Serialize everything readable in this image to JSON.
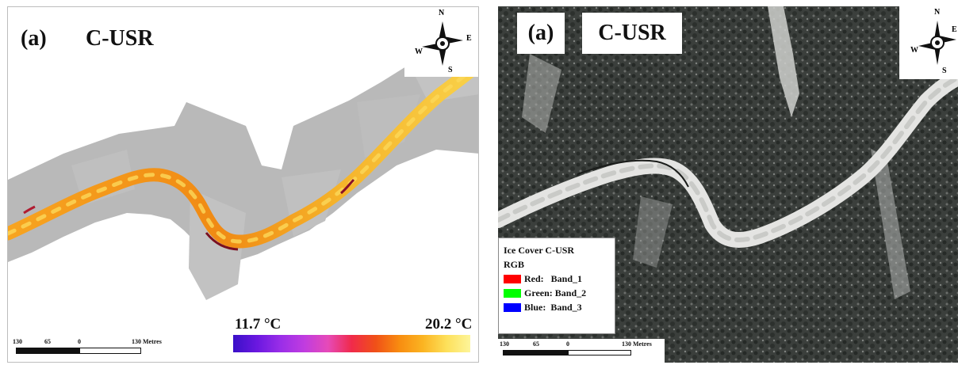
{
  "left_panel": {
    "panel_letter": "(a)",
    "site": "C-USR",
    "compass": {
      "n": "N",
      "e": "E",
      "s": "S",
      "w": "W"
    },
    "colorbar": {
      "min_label": "11.7 °C",
      "max_label": "20.2 °C",
      "colors": [
        "#3a10c8",
        "#c03ce0",
        "#f02a4a",
        "#f88c10",
        "#fdf59a"
      ]
    },
    "scale": {
      "ticks": [
        "130",
        "65",
        "0",
        "130 Metres"
      ]
    }
  },
  "right_panel": {
    "panel_letter": "(a)",
    "site": "C-USR",
    "compass": {
      "n": "N",
      "e": "E",
      "s": "S",
      "w": "W"
    },
    "legend": {
      "title": "Ice Cover C-USR",
      "subtitle": "RGB",
      "items": [
        {
          "label": "Red:   Band_1",
          "color": "#ff0000"
        },
        {
          "label": "Green: Band_2",
          "color": "#00ff00"
        },
        {
          "label": "Blue:  Band_3",
          "color": "#0000ff"
        }
      ]
    },
    "scale": {
      "ticks": [
        "130",
        "65",
        "0",
        "130 Metres"
      ]
    }
  }
}
